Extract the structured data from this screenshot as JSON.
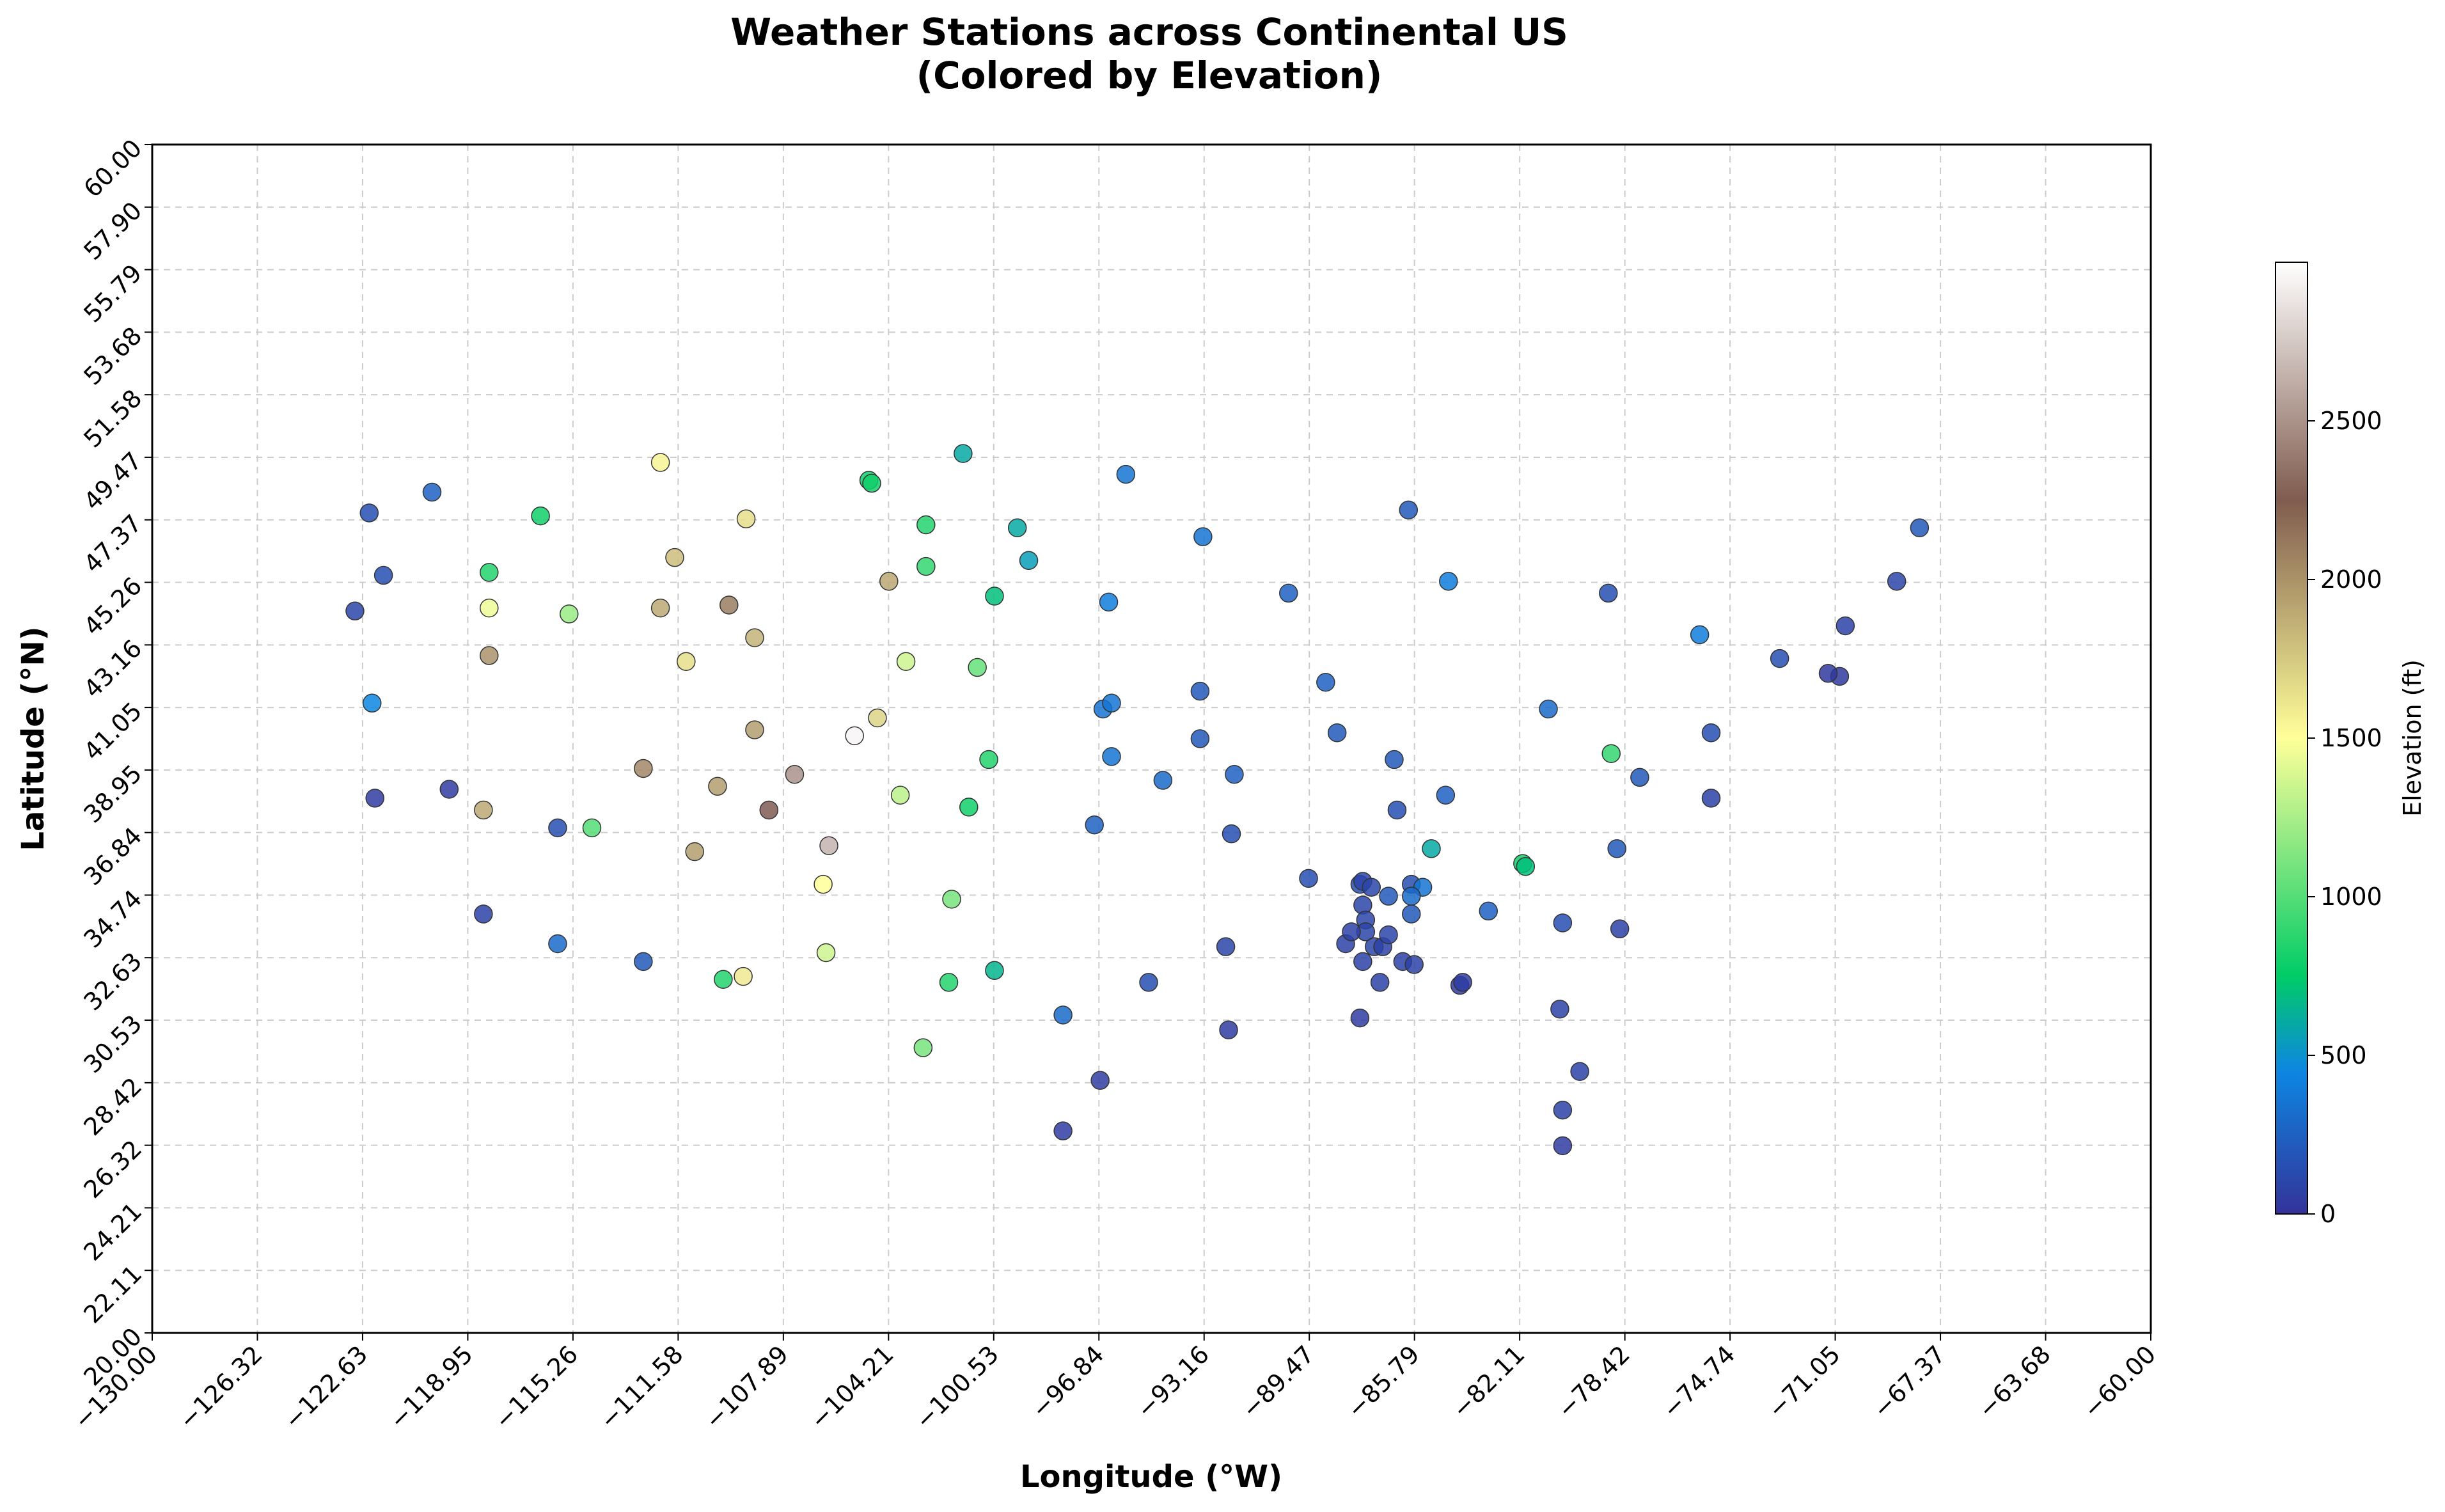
{
  "chart_data": {
    "type": "scatter",
    "title": "Weather Stations across Continental US",
    "subtitle": "(Colored by Elevation)",
    "xlabel": "Longitude (°W)",
    "ylabel": "Latitude (°N)",
    "xlim": [
      -130,
      -60
    ],
    "ylim": [
      20,
      60
    ],
    "x_ticks": [
      "−130.00",
      "−126.32",
      "−122.63",
      "−118.95",
      "−115.26",
      "−111.58",
      "−107.89",
      "−104.21",
      "−100.53",
      "−96.84",
      "−93.16",
      "−89.47",
      "−85.79",
      "−82.11",
      "−78.42",
      "−74.74",
      "−71.05",
      "−67.37",
      "−63.68",
      "−60.00"
    ],
    "y_ticks": [
      "20.00",
      "22.11",
      "24.21",
      "26.32",
      "28.42",
      "30.53",
      "32.63",
      "34.74",
      "36.84",
      "38.95",
      "41.05",
      "43.16",
      "45.26",
      "47.37",
      "49.47",
      "51.58",
      "53.68",
      "55.79",
      "57.90",
      "60.00"
    ],
    "grid": true,
    "colorbar": {
      "label": "Elevation (ft)",
      "min": 0,
      "max": 3000,
      "ticks": [
        "0",
        "500",
        "1000",
        "1500",
        "2000",
        "2500"
      ],
      "colormap": "terrain"
    },
    "points": [
      {
        "x": -122.4,
        "y": 47.6,
        "elev": 150
      },
      {
        "x": -120.2,
        "y": 48.3,
        "elev": 250
      },
      {
        "x": -121.9,
        "y": 45.5,
        "elev": 150
      },
      {
        "x": -122.9,
        "y": 44.3,
        "elev": 100
      },
      {
        "x": -122.3,
        "y": 41.2,
        "elev": 450
      },
      {
        "x": -122.2,
        "y": 38.0,
        "elev": 50
      },
      {
        "x": -119.6,
        "y": 38.3,
        "elev": 50
      },
      {
        "x": -118.4,
        "y": 37.6,
        "elev": 1900
      },
      {
        "x": -118.4,
        "y": 34.1,
        "elev": 80
      },
      {
        "x": -118.2,
        "y": 45.6,
        "elev": 850
      },
      {
        "x": -118.2,
        "y": 44.4,
        "elev": 1450
      },
      {
        "x": -118.2,
        "y": 42.8,
        "elev": 2000
      },
      {
        "x": -115.8,
        "y": 37.0,
        "elev": 150
      },
      {
        "x": -115.8,
        "y": 33.1,
        "elev": 300
      },
      {
        "x": -116.4,
        "y": 47.5,
        "elev": 800
      },
      {
        "x": -115.4,
        "y": 44.2,
        "elev": 1200
      },
      {
        "x": -114.6,
        "y": 37.0,
        "elev": 1000
      },
      {
        "x": -112.8,
        "y": 39.0,
        "elev": 2050
      },
      {
        "x": -112.8,
        "y": 32.5,
        "elev": 200
      },
      {
        "x": -112.2,
        "y": 49.3,
        "elev": 1550
      },
      {
        "x": -111.7,
        "y": 46.1,
        "elev": 1800
      },
      {
        "x": -112.2,
        "y": 44.4,
        "elev": 1900
      },
      {
        "x": -111.3,
        "y": 42.6,
        "elev": 1650
      },
      {
        "x": -111.0,
        "y": 36.2,
        "elev": 1950
      },
      {
        "x": -109.8,
        "y": 44.5,
        "elev": 2100
      },
      {
        "x": -109.2,
        "y": 47.4,
        "elev": 1650
      },
      {
        "x": -109.3,
        "y": 32.0,
        "elev": 1600
      },
      {
        "x": -110.0,
        "y": 31.9,
        "elev": 850
      },
      {
        "x": -110.2,
        "y": 38.4,
        "elev": 1950
      },
      {
        "x": -108.9,
        "y": 43.4,
        "elev": 1850
      },
      {
        "x": -108.9,
        "y": 40.3,
        "elev": 1950
      },
      {
        "x": -108.4,
        "y": 37.6,
        "elev": 2250
      },
      {
        "x": -107.5,
        "y": 38.8,
        "elev": 2500
      },
      {
        "x": -106.3,
        "y": 36.4,
        "elev": 2650
      },
      {
        "x": -106.5,
        "y": 35.1,
        "elev": 1500
      },
      {
        "x": -106.4,
        "y": 32.8,
        "elev": 1350
      },
      {
        "x": -105.4,
        "y": 40.1,
        "elev": 2950
      },
      {
        "x": -104.9,
        "y": 48.7,
        "elev": 800
      },
      {
        "x": -104.8,
        "y": 48.6,
        "elev": 800
      },
      {
        "x": -104.6,
        "y": 40.7,
        "elev": 1700
      },
      {
        "x": -104.2,
        "y": 45.3,
        "elev": 1900
      },
      {
        "x": -103.8,
        "y": 38.1,
        "elev": 1300
      },
      {
        "x": -103.6,
        "y": 42.6,
        "elev": 1350
      },
      {
        "x": -102.9,
        "y": 47.2,
        "elev": 850
      },
      {
        "x": -102.9,
        "y": 45.8,
        "elev": 900
      },
      {
        "x": -102.0,
        "y": 34.6,
        "elev": 1100
      },
      {
        "x": -102.1,
        "y": 31.8,
        "elev": 850
      },
      {
        "x": -103.0,
        "y": 29.6,
        "elev": 1100
      },
      {
        "x": -101.1,
        "y": 42.4,
        "elev": 1050
      },
      {
        "x": -101.4,
        "y": 37.7,
        "elev": 800
      },
      {
        "x": -100.7,
        "y": 39.3,
        "elev": 850
      },
      {
        "x": -100.5,
        "y": 44.8,
        "elev": 700
      },
      {
        "x": -100.5,
        "y": 32.2,
        "elev": 650
      },
      {
        "x": -101.6,
        "y": 49.6,
        "elev": 600
      },
      {
        "x": -99.7,
        "y": 47.1,
        "elev": 600
      },
      {
        "x": -99.3,
        "y": 46.0,
        "elev": 550
      },
      {
        "x": -98.1,
        "y": 30.7,
        "elev": 300
      },
      {
        "x": -96.8,
        "y": 28.5,
        "elev": 50
      },
      {
        "x": -98.1,
        "y": 26.8,
        "elev": 50
      },
      {
        "x": -97.0,
        "y": 37.1,
        "elev": 250
      },
      {
        "x": -96.7,
        "y": 41.0,
        "elev": 350
      },
      {
        "x": -96.4,
        "y": 41.2,
        "elev": 350
      },
      {
        "x": -96.4,
        "y": 39.4,
        "elev": 350
      },
      {
        "x": -96.5,
        "y": 44.6,
        "elev": 400
      },
      {
        "x": -95.9,
        "y": 48.9,
        "elev": 350
      },
      {
        "x": -95.1,
        "y": 31.8,
        "elev": 150
      },
      {
        "x": -94.6,
        "y": 38.6,
        "elev": 300
      },
      {
        "x": -93.2,
        "y": 46.8,
        "elev": 350
      },
      {
        "x": -93.3,
        "y": 41.6,
        "elev": 200
      },
      {
        "x": -93.3,
        "y": 40.0,
        "elev": 200
      },
      {
        "x": -92.1,
        "y": 38.8,
        "elev": 250
      },
      {
        "x": -92.2,
        "y": 36.8,
        "elev": 150
      },
      {
        "x": -92.4,
        "y": 33.0,
        "elev": 100
      },
      {
        "x": -92.3,
        "y": 30.2,
        "elev": 50
      },
      {
        "x": -90.2,
        "y": 44.9,
        "elev": 250
      },
      {
        "x": -89.5,
        "y": 35.3,
        "elev": 150
      },
      {
        "x": -88.9,
        "y": 41.9,
        "elev": 250
      },
      {
        "x": -88.5,
        "y": 40.2,
        "elev": 200
      },
      {
        "x": -88.2,
        "y": 33.1,
        "elev": 80
      },
      {
        "x": -87.7,
        "y": 35.1,
        "elev": 150
      },
      {
        "x": -87.6,
        "y": 35.2,
        "elev": 100
      },
      {
        "x": -87.3,
        "y": 35.0,
        "elev": 100
      },
      {
        "x": -87.6,
        "y": 34.4,
        "elev": 100
      },
      {
        "x": -87.5,
        "y": 33.9,
        "elev": 100
      },
      {
        "x": -87.5,
        "y": 33.5,
        "elev": 100
      },
      {
        "x": -87.2,
        "y": 33.0,
        "elev": 100
      },
      {
        "x": -86.9,
        "y": 33.0,
        "elev": 80
      },
      {
        "x": -87.6,
        "y": 32.5,
        "elev": 80
      },
      {
        "x": -87.0,
        "y": 31.8,
        "elev": 80
      },
      {
        "x": -87.7,
        "y": 30.6,
        "elev": 50
      },
      {
        "x": -88.0,
        "y": 33.5,
        "elev": 80
      },
      {
        "x": -86.7,
        "y": 33.4,
        "elev": 100
      },
      {
        "x": -86.2,
        "y": 32.5,
        "elev": 80
      },
      {
        "x": -85.8,
        "y": 32.4,
        "elev": 80
      },
      {
        "x": -85.9,
        "y": 35.1,
        "elev": 150
      },
      {
        "x": -85.5,
        "y": 35.0,
        "elev": 350
      },
      {
        "x": -85.9,
        "y": 34.7,
        "elev": 300
      },
      {
        "x": -85.9,
        "y": 34.1,
        "elev": 200
      },
      {
        "x": -86.7,
        "y": 34.7,
        "elev": 200
      },
      {
        "x": -86.4,
        "y": 37.6,
        "elev": 150
      },
      {
        "x": -86.5,
        "y": 39.3,
        "elev": 200
      },
      {
        "x": -86.0,
        "y": 47.7,
        "elev": 200
      },
      {
        "x": -85.2,
        "y": 36.3,
        "elev": 600
      },
      {
        "x": -84.6,
        "y": 45.3,
        "elev": 400
      },
      {
        "x": -84.7,
        "y": 38.1,
        "elev": 250
      },
      {
        "x": -84.2,
        "y": 31.7,
        "elev": 50
      },
      {
        "x": -84.1,
        "y": 31.8,
        "elev": 50
      },
      {
        "x": -83.2,
        "y": 34.2,
        "elev": 250
      },
      {
        "x": -82.0,
        "y": 35.8,
        "elev": 800
      },
      {
        "x": -81.9,
        "y": 35.7,
        "elev": 700
      },
      {
        "x": -81.1,
        "y": 41.0,
        "elev": 300
      },
      {
        "x": -80.6,
        "y": 33.8,
        "elev": 150
      },
      {
        "x": -80.7,
        "y": 30.9,
        "elev": 80
      },
      {
        "x": -80.6,
        "y": 27.5,
        "elev": 80
      },
      {
        "x": -80.6,
        "y": 26.3,
        "elev": 50
      },
      {
        "x": -80.0,
        "y": 28.8,
        "elev": 80
      },
      {
        "x": -78.6,
        "y": 33.6,
        "elev": 80
      },
      {
        "x": -78.7,
        "y": 36.3,
        "elev": 200
      },
      {
        "x": -79.0,
        "y": 44.9,
        "elev": 150
      },
      {
        "x": -78.9,
        "y": 39.5,
        "elev": 900
      },
      {
        "x": -77.9,
        "y": 38.7,
        "elev": 200
      },
      {
        "x": -75.8,
        "y": 43.5,
        "elev": 400
      },
      {
        "x": -75.4,
        "y": 40.2,
        "elev": 150
      },
      {
        "x": -75.4,
        "y": 38.0,
        "elev": 80
      },
      {
        "x": -73.0,
        "y": 42.7,
        "elev": 150
      },
      {
        "x": -70.9,
        "y": 42.1,
        "elev": 30
      },
      {
        "x": -71.3,
        "y": 42.2,
        "elev": 30
      },
      {
        "x": -70.7,
        "y": 43.8,
        "elev": 80
      },
      {
        "x": -68.9,
        "y": 45.3,
        "elev": 100
      },
      {
        "x": -68.1,
        "y": 47.1,
        "elev": 200
      }
    ]
  }
}
